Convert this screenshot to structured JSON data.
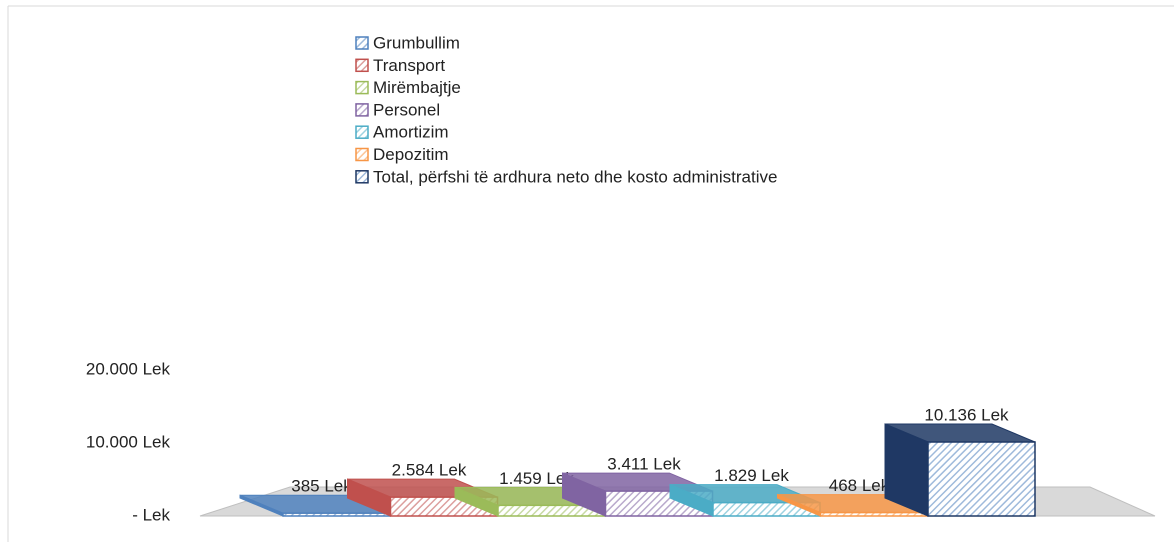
{
  "chart_data": {
    "type": "bar3d",
    "series": [
      {
        "name": "Grumbullim",
        "color": "#4f81bd",
        "values": [
          385
        ],
        "value_labels": [
          "385 Lek"
        ]
      },
      {
        "name": "Transport",
        "color": "#c0504d",
        "values": [
          2584
        ],
        "value_labels": [
          "2.584 Lek"
        ]
      },
      {
        "name": "Mirëmbajtje",
        "color": "#9bbb59",
        "values": [
          1459
        ],
        "value_labels": [
          "1.459 Lek"
        ]
      },
      {
        "name": "Personel",
        "color": "#8064a2",
        "values": [
          3411
        ],
        "value_labels": [
          "3.411 Lek"
        ]
      },
      {
        "name": "Amortizim",
        "color": "#4bacc6",
        "values": [
          1829
        ],
        "value_labels": [
          "1.829 Lek"
        ]
      },
      {
        "name": "Depozitim",
        "color": "#f79646",
        "values": [
          468
        ],
        "value_labels": [
          "468 Lek"
        ]
      },
      {
        "name": "Total, përfshi të ardhura neto dhe kosto administrative",
        "color": "#1f3864",
        "values": [
          10136
        ],
        "value_labels": [
          "10.136 Lek"
        ]
      }
    ],
    "ylim": [
      0,
      20000
    ],
    "yticks": [
      {
        "value": 0,
        "label": "- Lek"
      },
      {
        "value": 10000,
        "label": "10.000 Lek"
      },
      {
        "value": 20000,
        "label": "20.000 Lek"
      }
    ],
    "legend": "top"
  }
}
